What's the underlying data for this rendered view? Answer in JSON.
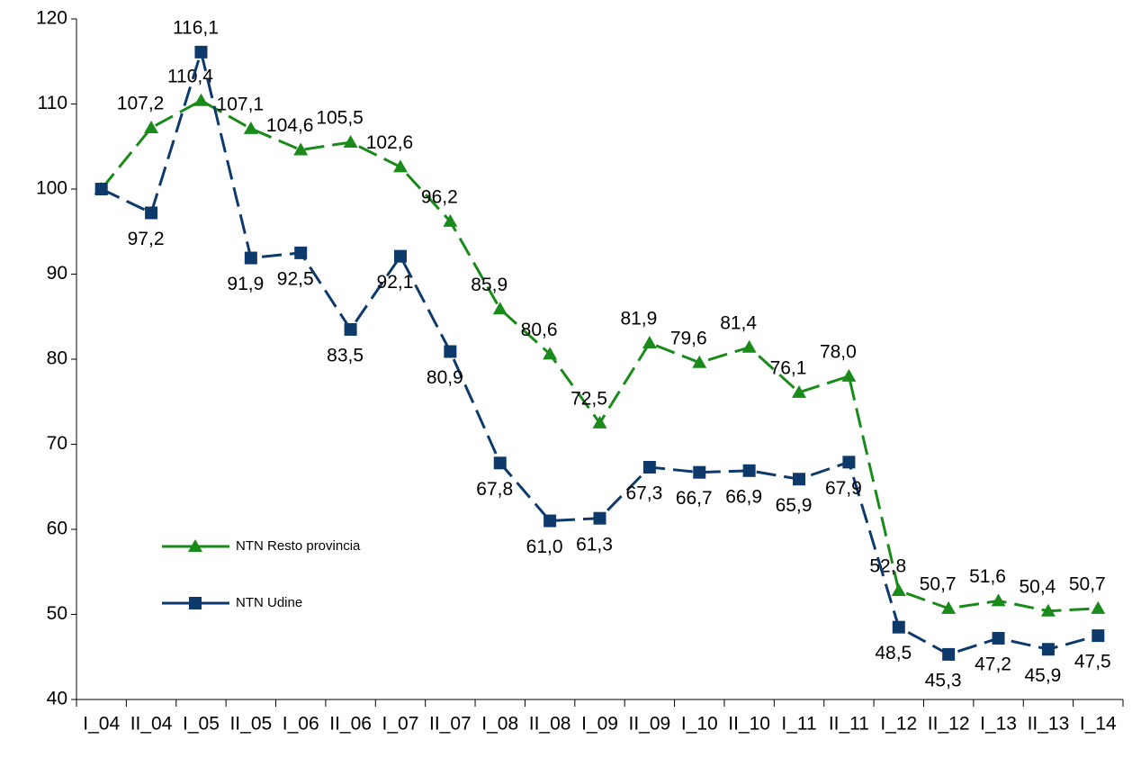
{
  "chart_data": {
    "type": "line",
    "categories": [
      "I_04",
      "II_04",
      "I_05",
      "II_05",
      "I_06",
      "II_06",
      "I_07",
      "II_07",
      "I_08",
      "II_08",
      "I_09",
      "II_09",
      "I_10",
      "II_10",
      "I_11",
      "II_11",
      "I_12",
      "II_12",
      "I_13",
      "II_13",
      "I_14"
    ],
    "series": [
      {
        "name": "NTN Resto provincia",
        "color": "#1a8a1a",
        "marker": "triangle",
        "values": [
          100,
          107.2,
          110.4,
          107.1,
          104.6,
          105.5,
          102.6,
          96.2,
          85.9,
          80.6,
          72.5,
          81.9,
          79.6,
          81.4,
          76.1,
          78.0,
          52.8,
          50.7,
          51.6,
          50.4,
          50.7
        ],
        "value_labels": [
          null,
          "107,2",
          "110,4",
          "107,1",
          "104,6",
          "105,5",
          "102,6",
          "96,2",
          "85,9",
          "80,6",
          "72,5",
          "81,9",
          "79,6",
          "81,4",
          "76,1",
          "78,0",
          "52,8",
          "50,7",
          "51,6",
          "50,4",
          "50,7"
        ]
      },
      {
        "name": "NTN Udine",
        "color": "#0d3a6b",
        "marker": "square",
        "values": [
          100,
          97.2,
          116.1,
          91.9,
          92.5,
          83.5,
          92.1,
          80.9,
          67.8,
          61.0,
          61.3,
          67.3,
          66.7,
          66.9,
          65.9,
          67.9,
          48.5,
          45.3,
          47.2,
          45.9,
          47.5
        ],
        "value_labels": [
          null,
          "97,2",
          "116,1",
          "91,9",
          "92,5",
          "83,5",
          "92,1",
          "80,9",
          "67,8",
          "61,0",
          "61,3",
          "67,3",
          "66,7",
          "66,9",
          "65,9",
          "67,9",
          "48,5",
          "45,3",
          "47,2",
          "45,9",
          "47,5"
        ]
      }
    ],
    "ylim": [
      40,
      120
    ],
    "yticks": [
      40,
      50,
      60,
      70,
      80,
      90,
      100,
      110,
      120
    ]
  }
}
